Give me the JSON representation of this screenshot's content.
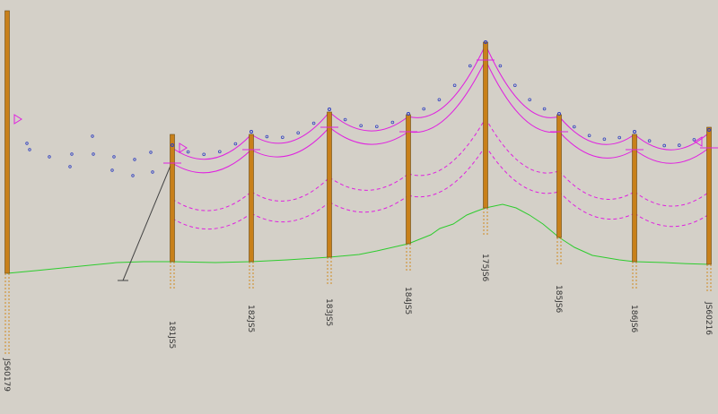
{
  "poles": [
    {
      "label": "JS60179"
    },
    {
      "label": "181JS5"
    },
    {
      "label": "182JS5"
    },
    {
      "label": "183JS5"
    },
    {
      "label": "184JS5"
    },
    {
      "label": "175JS6"
    },
    {
      "label": "185JS6"
    },
    {
      "label": "186JS6"
    },
    {
      "label": "JS60216"
    }
  ]
}
